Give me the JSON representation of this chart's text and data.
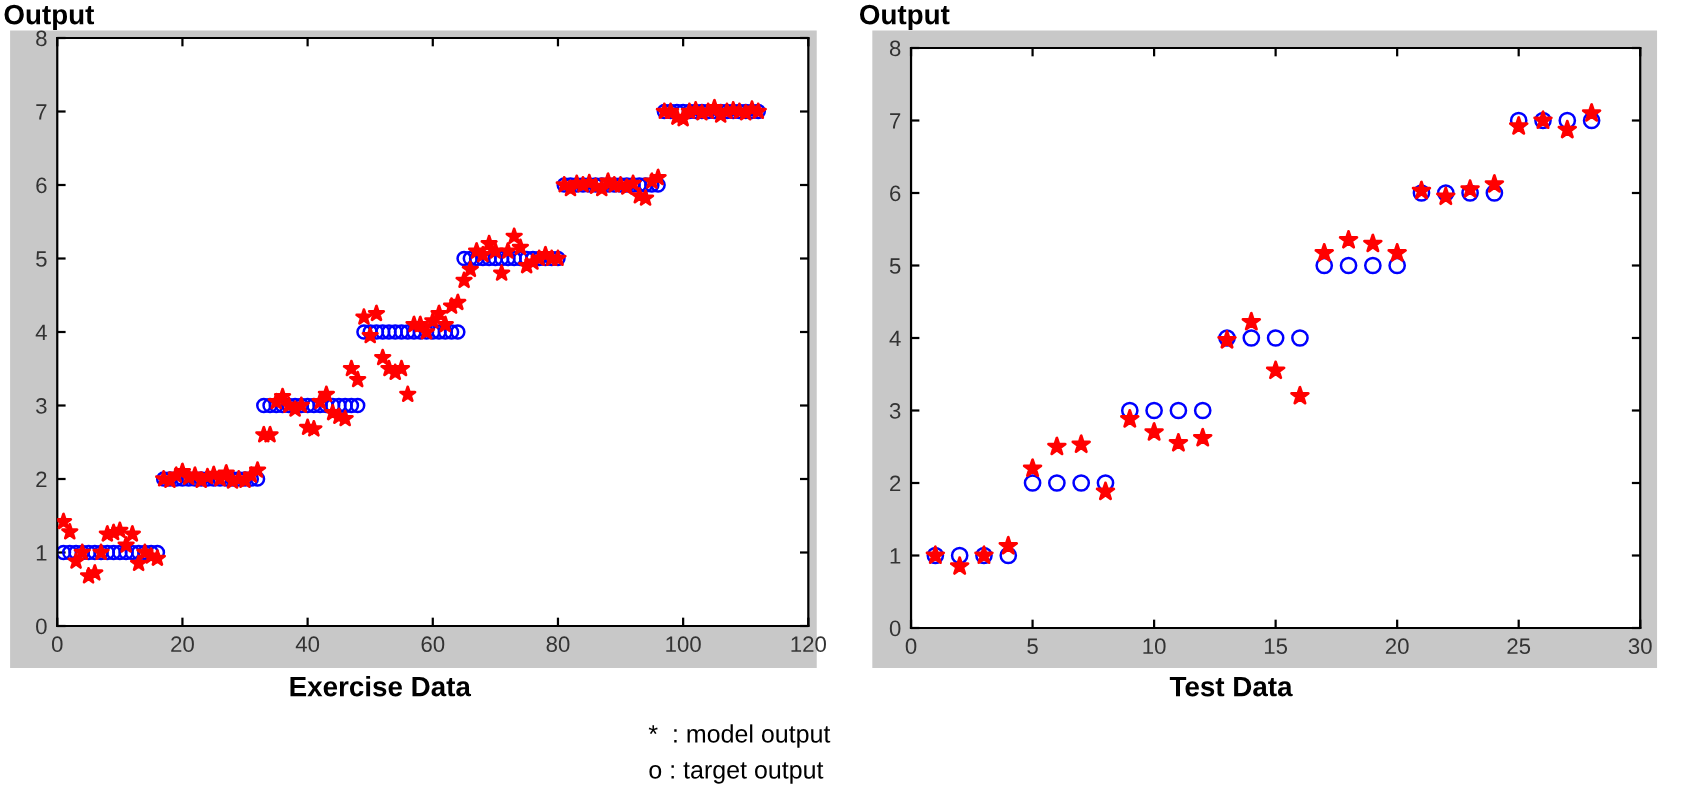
{
  "chart_data": [
    {
      "type": "scatter",
      "ylabel": "Output",
      "xlabel": "Exercise Data",
      "xlim": [
        0,
        120
      ],
      "ylim": [
        0,
        8
      ],
      "xticks": [
        0,
        20,
        40,
        60,
        80,
        100,
        120
      ],
      "yticks": [
        0,
        1,
        2,
        3,
        4,
        5,
        6,
        7,
        8
      ],
      "grid": false,
      "legend": false,
      "annotations": [
        "*  : model output",
        "o : target output"
      ],
      "x": [
        1,
        2,
        3,
        4,
        5,
        6,
        7,
        8,
        9,
        10,
        11,
        12,
        13,
        14,
        15,
        16,
        17,
        18,
        19,
        20,
        21,
        22,
        23,
        24,
        25,
        26,
        27,
        28,
        29,
        30,
        31,
        32,
        33,
        34,
        35,
        36,
        37,
        38,
        39,
        40,
        41,
        42,
        43,
        44,
        45,
        46,
        47,
        48,
        49,
        50,
        51,
        52,
        53,
        54,
        55,
        56,
        57,
        58,
        59,
        60,
        61,
        62,
        63,
        64,
        65,
        66,
        67,
        68,
        69,
        70,
        71,
        72,
        73,
        74,
        75,
        76,
        77,
        78,
        79,
        80,
        81,
        82,
        83,
        84,
        85,
        86,
        87,
        88,
        89,
        90,
        91,
        92,
        93,
        94,
        95,
        96,
        97,
        98,
        99,
        100,
        101,
        102,
        103,
        104,
        105,
        106,
        107,
        108,
        109,
        110,
        111,
        112
      ],
      "series": [
        {
          "color": "#0000ff",
          "marker": "circle",
          "values": [
            1,
            1,
            1,
            1,
            1,
            1,
            1,
            1,
            1,
            1,
            1,
            1,
            1,
            1,
            1,
            1,
            2,
            2,
            2,
            2,
            2,
            2,
            2,
            2,
            2,
            2,
            2,
            2,
            2,
            2,
            2,
            2,
            3,
            3,
            3,
            3,
            3,
            3,
            3,
            3,
            3,
            3,
            3,
            3,
            3,
            3,
            3,
            3,
            4,
            4,
            4,
            4,
            4,
            4,
            4,
            4,
            4,
            4,
            4,
            4,
            4,
            4,
            4,
            4,
            5,
            5,
            5,
            5,
            5,
            5,
            5,
            5,
            5,
            5,
            5,
            5,
            5,
            5,
            5,
            5,
            6,
            6,
            6,
            6,
            6,
            6,
            6,
            6,
            6,
            6,
            6,
            6,
            6,
            6,
            6,
            6,
            7,
            7,
            7,
            7,
            7,
            7,
            7,
            7,
            7,
            7,
            7,
            7,
            7,
            7,
            7,
            7
          ]
        },
        {
          "color": "#ff0000",
          "marker": "star",
          "values": [
            1.42,
            1.28,
            0.88,
            1.0,
            0.68,
            0.72,
            1.0,
            1.25,
            1.27,
            1.3,
            1.1,
            1.25,
            0.85,
            1.0,
            0.95,
            0.92,
            2.0,
            1.98,
            2.05,
            2.1,
            2.02,
            2.05,
            1.98,
            2.03,
            2.06,
            2.0,
            2.08,
            1.97,
            2.0,
            1.98,
            2.05,
            2.12,
            2.6,
            2.6,
            3.05,
            3.12,
            3.0,
            2.95,
            3.0,
            2.7,
            2.68,
            3.05,
            3.15,
            2.9,
            2.85,
            2.82,
            3.5,
            3.35,
            4.2,
            3.95,
            4.25,
            3.65,
            3.5,
            3.45,
            3.5,
            3.15,
            4.1,
            4.1,
            4.0,
            4.15,
            4.25,
            4.1,
            4.35,
            4.4,
            4.7,
            4.85,
            5.1,
            5.05,
            5.2,
            5.1,
            4.8,
            5.1,
            5.3,
            5.15,
            4.9,
            4.95,
            5.0,
            5.05,
            5.0,
            5.0,
            6.0,
            5.95,
            6.02,
            6.0,
            6.03,
            5.98,
            5.95,
            6.05,
            6.0,
            6.0,
            5.97,
            6.02,
            5.85,
            5.82,
            6.05,
            6.1,
            7.0,
            7.0,
            6.92,
            6.9,
            7.0,
            7.02,
            6.98,
            7.0,
            7.05,
            6.95,
            7.0,
            7.02,
            7.0,
            6.98,
            7.03,
            7.0
          ]
        }
      ]
    },
    {
      "type": "scatter",
      "ylabel": "Output",
      "xlabel": "Test Data",
      "xlim": [
        0,
        30
      ],
      "ylim": [
        0,
        8
      ],
      "xticks": [
        0,
        5,
        10,
        15,
        20,
        25,
        30
      ],
      "yticks": [
        0,
        1,
        2,
        3,
        4,
        5,
        6,
        7,
        8
      ],
      "grid": false,
      "legend": false,
      "x": [
        1,
        2,
        3,
        4,
        5,
        6,
        7,
        8,
        9,
        10,
        11,
        12,
        13,
        14,
        15,
        16,
        17,
        18,
        19,
        20,
        21,
        22,
        23,
        24,
        25,
        26,
        27,
        28
      ],
      "series": [
        {
          "color": "#0000ff",
          "marker": "circle",
          "values": [
            1,
            1,
            1,
            1,
            2,
            2,
            2,
            2,
            3,
            3,
            3,
            3,
            4,
            4,
            4,
            4,
            5,
            5,
            5,
            5,
            6,
            6,
            6,
            6,
            7,
            7,
            7,
            7
          ]
        },
        {
          "color": "#ff0000",
          "marker": "star",
          "values": [
            1.0,
            0.85,
            1.0,
            1.13,
            2.2,
            2.5,
            2.53,
            1.88,
            2.88,
            2.7,
            2.55,
            2.62,
            3.97,
            4.22,
            3.55,
            3.2,
            5.17,
            5.35,
            5.3,
            5.17,
            6.03,
            5.95,
            6.05,
            6.12,
            6.92,
            7.0,
            6.87,
            7.1
          ]
        }
      ]
    }
  ]
}
